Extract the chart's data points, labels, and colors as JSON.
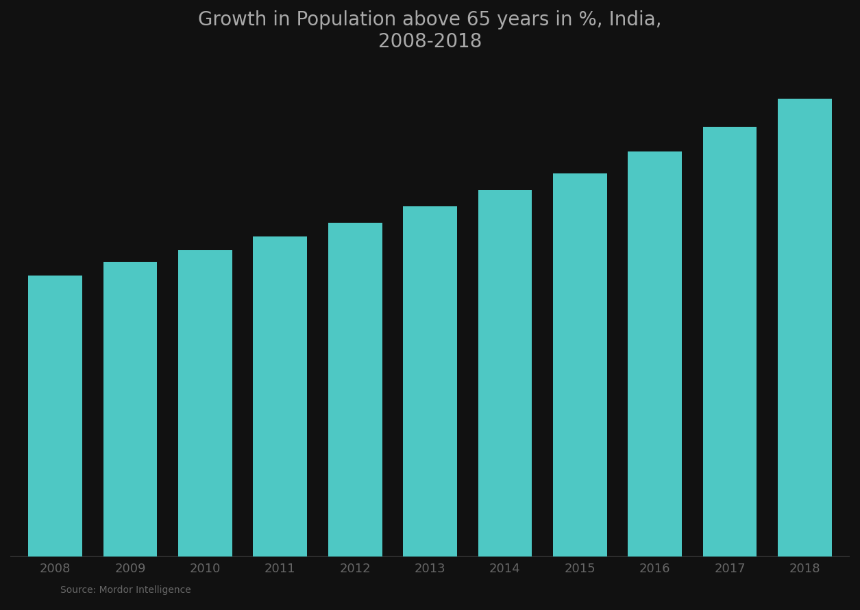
{
  "title_line1": "Growth in Population above 65 years in %, India,",
  "title_line2": "2008-2018",
  "years": [
    "2008",
    "2009",
    "2010",
    "2011",
    "2012",
    "2013",
    "2014",
    "2015",
    "2016",
    "2017",
    "2018"
  ],
  "values": [
    5.1,
    5.35,
    5.55,
    5.8,
    6.05,
    6.35,
    6.65,
    6.95,
    7.35,
    7.8,
    8.3
  ],
  "bar_color": "#4EC8C4",
  "background_color": "#111111",
  "title_color": "#aaaaaa",
  "tick_color": "#666666",
  "source_text": "Source: Mordor Intelligence",
  "ylim": [
    0,
    8.8
  ],
  "title_fontsize": 20,
  "tick_fontsize": 13,
  "bar_width": 0.72
}
